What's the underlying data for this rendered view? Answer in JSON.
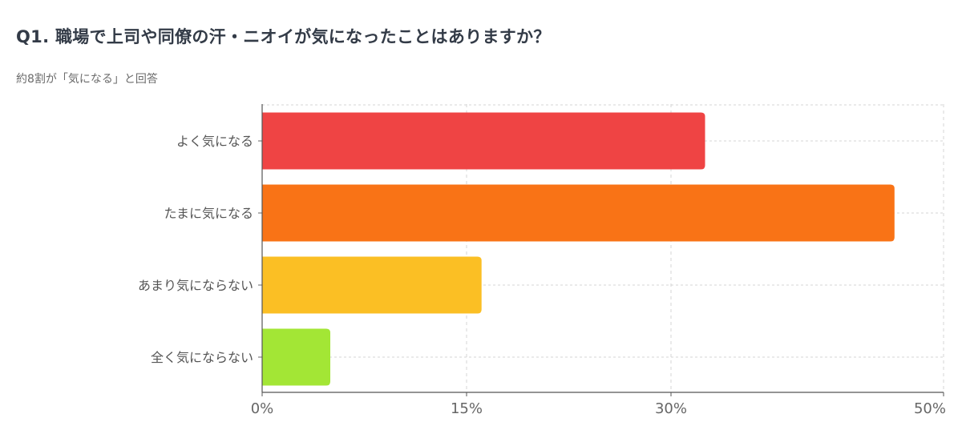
{
  "title": "Q1. 職場で上司や同僚の汗・ニオイが気になったことはありますか？",
  "subtitle": "約8割が「気になる」と回答",
  "chart_data": {
    "type": "bar",
    "orientation": "horizontal",
    "title": "Q1. 職場で上司や同僚の汗・ニオイが気になったことはありますか？",
    "subtitle": "約8割が「気になる」と回答",
    "categories": [
      "よく気になる",
      "たまに気になる",
      "あまり気にならない",
      "全く気にならない"
    ],
    "values": [
      32.5,
      46.4,
      16.1,
      5.0
    ],
    "colors": [
      "#ef4444",
      "#f97316",
      "#fbbf24",
      "#a3e635"
    ],
    "unit": "%",
    "xlim": [
      0,
      50
    ],
    "xticks": [
      0,
      15,
      30,
      50
    ],
    "xtick_labels": [
      "0%",
      "15%",
      "30%",
      "50%"
    ],
    "grid": true,
    "xlabel": "",
    "ylabel": ""
  }
}
